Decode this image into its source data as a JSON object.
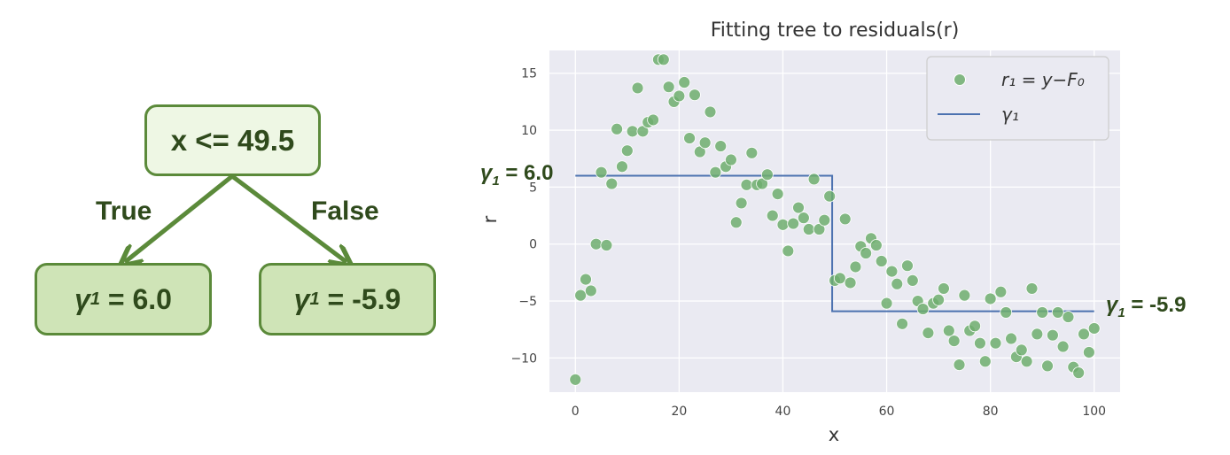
{
  "tree": {
    "root_label": "x <= 49.5",
    "true_label": "True",
    "false_label": "False",
    "left_leaf": {
      "symbol": "γ",
      "sub": "1",
      "rest": " = 6.0"
    },
    "right_leaf": {
      "symbol": "γ",
      "sub": "1",
      "rest": " = -5.9"
    }
  },
  "annotations": {
    "left": {
      "symbol": "γ",
      "sub": "1",
      "rest": " = 6.0"
    },
    "right": {
      "symbol": "γ",
      "sub": "1",
      "rest": " = -5.9"
    }
  },
  "colors": {
    "tree_border": "#5b8a3a",
    "tree_text": "#2f4a1c",
    "point": "#6fae6f",
    "step_line": "#4c72b0",
    "plot_bg": "#eaeaf2"
  },
  "chart_data": {
    "type": "scatter",
    "title": "Fitting tree to residuals(r)",
    "xlabel": "x",
    "ylabel": "r",
    "xlim": [
      -5,
      105
    ],
    "ylim": [
      -13,
      17
    ],
    "xticks": [
      0,
      20,
      40,
      60,
      80,
      100
    ],
    "yticks": [
      -10,
      -5,
      0,
      5,
      10,
      15
    ],
    "grid": true,
    "legend_position": "top-right",
    "legend": [
      {
        "kind": "marker",
        "label": "r₁ = y−F₀"
      },
      {
        "kind": "line",
        "label": "γ₁"
      }
    ],
    "scatter": {
      "x": [
        0,
        1,
        2,
        3,
        4,
        5,
        6,
        7,
        8,
        9,
        10,
        11,
        12,
        13,
        14,
        15,
        16,
        17,
        18,
        19,
        20,
        21,
        22,
        23,
        24,
        25,
        26,
        27,
        28,
        29,
        30,
        31,
        32,
        33,
        34,
        35,
        36,
        37,
        38,
        39,
        40,
        41,
        42,
        43,
        44,
        45,
        46,
        47,
        48,
        49,
        50,
        51,
        52,
        53,
        54,
        55,
        56,
        57,
        58,
        59,
        60,
        61,
        62,
        63,
        64,
        65,
        66,
        67,
        68,
        69,
        70,
        71,
        72,
        73,
        74,
        75,
        76,
        77,
        78,
        79,
        80,
        81,
        82,
        83,
        84,
        85,
        86,
        87,
        88,
        89,
        90,
        91,
        92,
        93,
        94,
        95,
        96,
        97,
        98,
        99,
        100
      ],
      "y": [
        -11.9,
        -4.5,
        -3.1,
        -4.1,
        0.0,
        6.3,
        -0.1,
        5.3,
        10.1,
        6.8,
        8.2,
        9.9,
        13.7,
        9.9,
        10.7,
        10.9,
        16.2,
        16.2,
        13.8,
        12.5,
        13.0,
        14.2,
        9.3,
        13.1,
        8.1,
        8.9,
        11.6,
        6.3,
        8.6,
        6.8,
        7.4,
        1.9,
        3.6,
        5.2,
        8.0,
        5.2,
        5.3,
        6.1,
        2.5,
        4.4,
        1.7,
        -0.6,
        1.8,
        3.2,
        2.3,
        1.3,
        5.7,
        1.3,
        2.1,
        4.2,
        -3.2,
        -3.0,
        2.2,
        -3.4,
        -2.0,
        -0.2,
        -0.8,
        0.5,
        -0.1,
        -1.5,
        -5.2,
        -2.4,
        -3.5,
        -7.0,
        -1.9,
        -3.2,
        -5.0,
        -5.7,
        -7.8,
        -5.2,
        -4.9,
        -3.9,
        -7.6,
        -8.5,
        -10.6,
        -4.5,
        -7.6,
        -7.2,
        -8.7,
        -10.3,
        -4.8,
        -8.7,
        -4.2,
        -6.0,
        -8.3,
        -9.9,
        -9.3,
        -10.3,
        -3.9,
        -7.9,
        -6.0,
        -10.7,
        -8.0,
        -6.0,
        -9.0,
        -6.4,
        -10.8,
        -11.3,
        -7.9,
        -9.5,
        -7.4
      ]
    },
    "step": {
      "split": 49.5,
      "x_range": [
        0,
        100
      ],
      "left_value": 6.0,
      "right_value": -5.9
    }
  }
}
